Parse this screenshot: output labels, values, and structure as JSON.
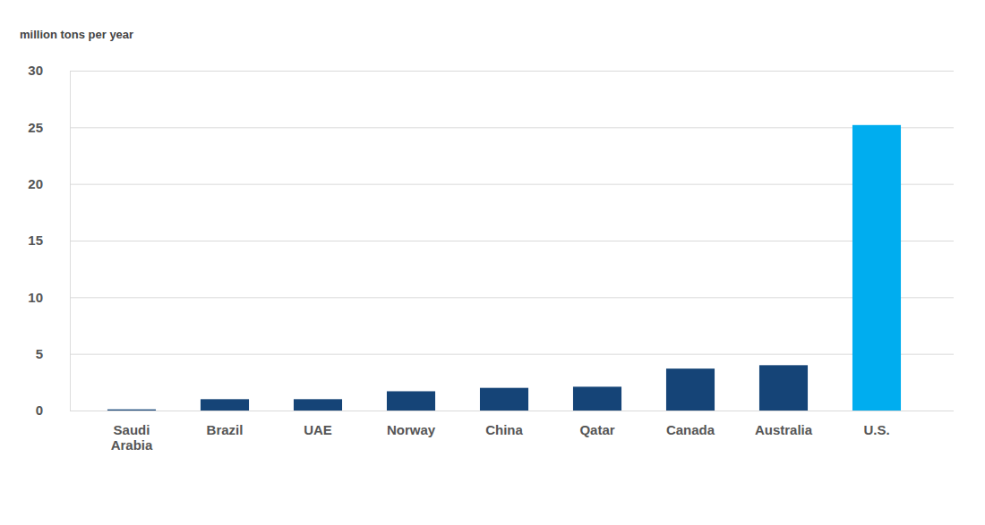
{
  "chart_data": {
    "type": "bar",
    "y_label": "million tons per year",
    "categories": [
      "Saudi Arabia",
      "Brazil",
      "UAE",
      "Norway",
      "China",
      "Qatar",
      "Canada",
      "Australia",
      "U.S."
    ],
    "values": [
      0.1,
      1.0,
      1.0,
      1.7,
      2.0,
      2.1,
      3.7,
      4.0,
      25.2
    ],
    "colors": [
      "#154477",
      "#154477",
      "#154477",
      "#154477",
      "#154477",
      "#154477",
      "#154477",
      "#154477",
      "#00adef"
    ],
    "ylim": [
      0,
      30
    ],
    "yticks": [
      0,
      5,
      10,
      15,
      20,
      25,
      30
    ],
    "grid": true
  }
}
